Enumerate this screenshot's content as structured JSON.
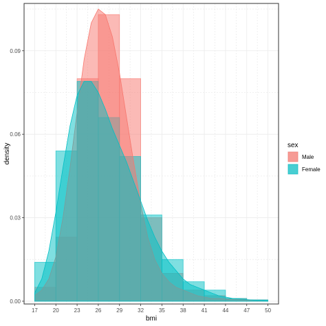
{
  "chart_data": {
    "type": "area",
    "xlabel": "bmi",
    "ylabel": "density",
    "xlim": [
      15.5,
      51.5
    ],
    "ylim": [
      -0.001,
      0.107
    ],
    "x_ticks": [
      17,
      20,
      23,
      26,
      29,
      32,
      35,
      38,
      41,
      44,
      47,
      50
    ],
    "y_ticks": [
      0.0,
      0.03,
      0.06,
      0.09
    ],
    "y_tick_labels": [
      "0.00",
      "0.03",
      "0.06",
      "0.09"
    ],
    "grid": true,
    "legend": {
      "title": "sex",
      "position": "right",
      "entries": [
        {
          "label": "Male",
          "color": "#F8766D"
        },
        {
          "label": "Female",
          "color": "#00BFC4"
        }
      ]
    },
    "histogram": {
      "bin_edges": [
        17,
        20,
        23,
        26,
        29,
        32,
        35,
        38,
        41,
        44,
        47,
        50
      ],
      "series": [
        {
          "name": "Male",
          "color": "#F8766D",
          "values": [
            0.005,
            0.023,
            0.08,
            0.103,
            0.08,
            0.03,
            0.01,
            0.004,
            0.002,
            0.001,
            0.0005
          ]
        },
        {
          "name": "Female",
          "color": "#00BFC4",
          "values": [
            0.014,
            0.054,
            0.079,
            0.066,
            0.052,
            0.031,
            0.015,
            0.007,
            0.004,
            0.001,
            0.0005
          ]
        }
      ]
    },
    "density": {
      "x": [
        17,
        18,
        19,
        20,
        21,
        22,
        23,
        24,
        25,
        26,
        27,
        28,
        29,
        30,
        31,
        32,
        33,
        34,
        35,
        36,
        37,
        38,
        39,
        40,
        41,
        42,
        43,
        44,
        45,
        46,
        47,
        48,
        49,
        50
      ],
      "series": [
        {
          "name": "Male",
          "color": "#F8766D",
          "values": [
            0.002,
            0.004,
            0.008,
            0.016,
            0.03,
            0.048,
            0.068,
            0.087,
            0.1,
            0.105,
            0.103,
            0.095,
            0.082,
            0.066,
            0.05,
            0.035,
            0.023,
            0.015,
            0.01,
            0.007,
            0.005,
            0.004,
            0.003,
            0.002,
            0.0015,
            0.001,
            0.001,
            0.0008,
            0.0006,
            0.0005,
            0.0004,
            0.0003,
            0.0002,
            0.0001
          ]
        },
        {
          "name": "Female",
          "color": "#00BFC4",
          "values": [
            0.003,
            0.008,
            0.018,
            0.032,
            0.048,
            0.063,
            0.074,
            0.079,
            0.079,
            0.075,
            0.069,
            0.062,
            0.056,
            0.05,
            0.043,
            0.036,
            0.029,
            0.023,
            0.018,
            0.014,
            0.011,
            0.008,
            0.006,
            0.005,
            0.004,
            0.003,
            0.002,
            0.0015,
            0.001,
            0.0008,
            0.0006,
            0.0004,
            0.0003,
            0.0002
          ]
        }
      ]
    }
  }
}
